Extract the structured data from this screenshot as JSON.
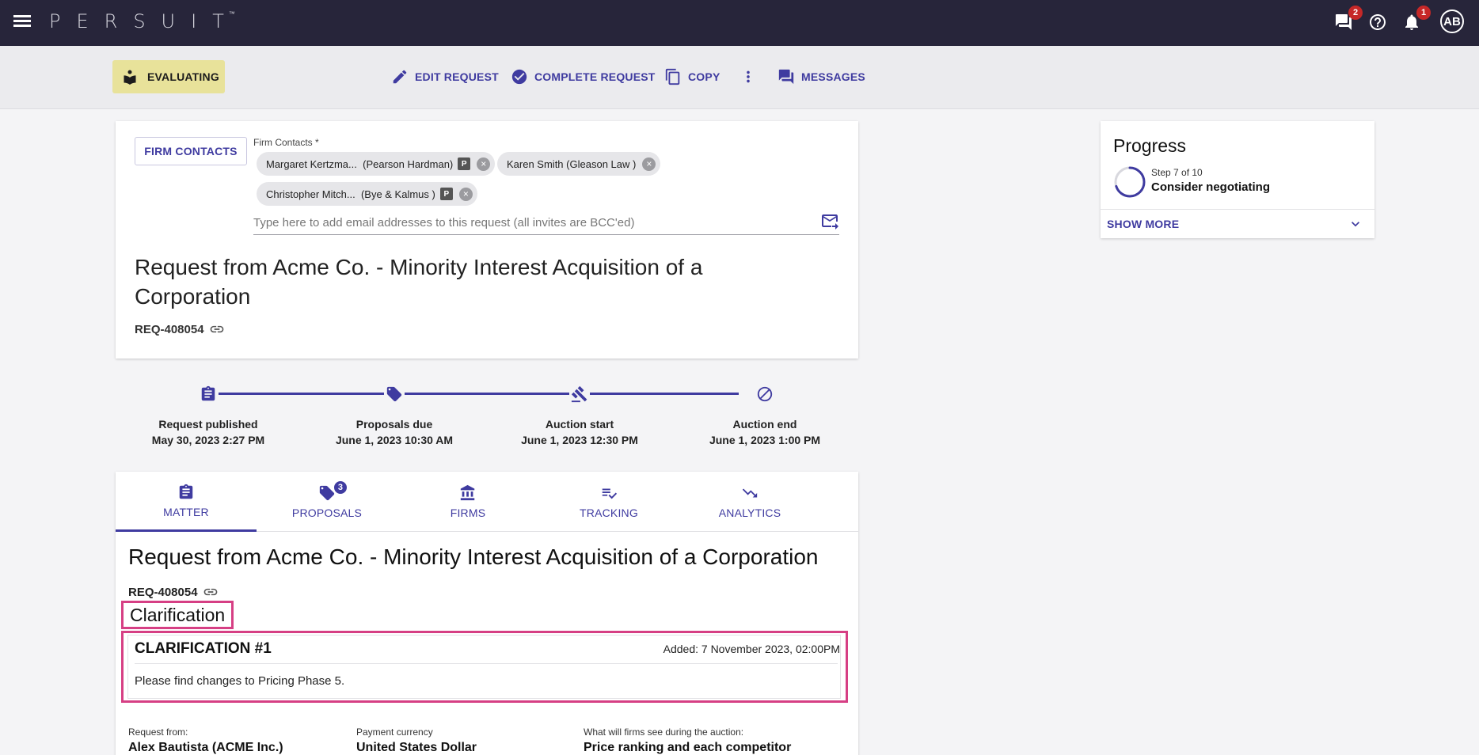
{
  "topbar": {
    "logo": "PERSUIT",
    "logo_tm": "™",
    "messages_badge": "2",
    "notifications_badge": "1",
    "avatar_initials": "AB"
  },
  "toolbar": {
    "status": "EVALUATING",
    "edit_request": "EDIT REQUEST",
    "complete_request": "COMPLETE REQUEST",
    "copy": "COPY",
    "messages": "MESSAGES"
  },
  "contacts": {
    "button": "FIRM CONTACTS",
    "label": "Firm Contacts *",
    "chips": [
      {
        "name": "Margaret Kertzma...",
        "firm": "(Pearson Hardman)",
        "tag": "P"
      },
      {
        "name": "Karen Smith",
        "firm": "(Gleason Law )",
        "tag": ""
      },
      {
        "name": "Christopher Mitch...",
        "firm": "(Bye & Kalmus )",
        "tag": "P"
      }
    ],
    "email_placeholder": "Type here to add email addresses to this request (all invites are BCC'ed)"
  },
  "request": {
    "title": "Request from Acme Co. - Minority Interest Acquisition of a Corporation",
    "id": "REQ-408054"
  },
  "timeline": [
    {
      "label": "Request published",
      "date": "May 30, 2023 2:27 PM",
      "icon": "clipboard-icon"
    },
    {
      "label": "Proposals due",
      "date": "June 1, 2023 10:30 AM",
      "icon": "tag-icon"
    },
    {
      "label": "Auction start",
      "date": "June 1, 2023 12:30 PM",
      "icon": "gavel-icon"
    },
    {
      "label": "Auction end",
      "date": "June 1, 2023 1:00 PM",
      "icon": "block-icon"
    }
  ],
  "tabs": [
    {
      "label": "MATTER",
      "icon": "clipboard-icon"
    },
    {
      "label": "PROPOSALS",
      "icon": "tag-icon",
      "badge": "3"
    },
    {
      "label": "FIRMS",
      "icon": "bank-icon"
    },
    {
      "label": "TRACKING",
      "icon": "checklist-icon"
    },
    {
      "label": "ANALYTICS",
      "icon": "trending-down-icon"
    }
  ],
  "matter": {
    "title": "Request from Acme Co. - Minority Interest Acquisition of a Corporation",
    "id": "REQ-408054",
    "clarification_heading": "Clarification",
    "clarification": {
      "title": "CLARIFICATION #1",
      "added": "Added: 7 November 2023, 02:00PM",
      "text": "Please find changes to Pricing Phase 5."
    },
    "meta": [
      {
        "label": "Request from:",
        "value": "Alex Bautista (ACME Inc.)"
      },
      {
        "label": "Payment currency",
        "value": "United States Dollar"
      },
      {
        "label": "What will firms see during the auction:",
        "value": "Price ranking and each competitor"
      }
    ]
  },
  "progress": {
    "title": "Progress",
    "step": "Step 7 of 10",
    "step_fraction": 0.7,
    "name": "Consider negotiating",
    "show_more": "SHOW MORE"
  },
  "colors": {
    "accent": "#3f3ba0",
    "topbar": "#27253a",
    "status_chip": "#e8e29a",
    "highlight": "#d63f84"
  }
}
